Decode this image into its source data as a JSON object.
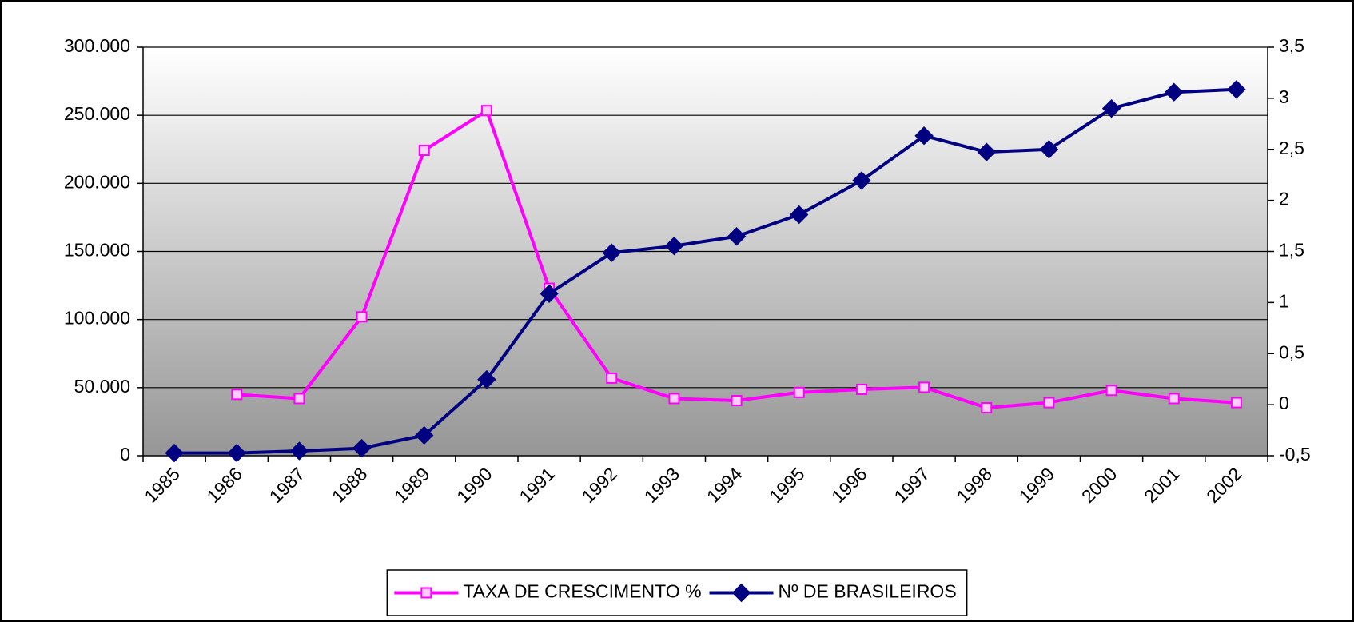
{
  "chart_data": {
    "type": "line",
    "categories": [
      "1985",
      "1986",
      "1987",
      "1988",
      "1989",
      "1990",
      "1991",
      "1992",
      "1993",
      "1994",
      "1995",
      "1996",
      "1997",
      "1998",
      "1999",
      "2000",
      "2001",
      "2002"
    ],
    "series": [
      {
        "name": "TAXA DE CRESCIMENTO %",
        "color": "#ff00ff",
        "axis": "y2",
        "marker": "square",
        "values": [
          null,
          0.1,
          0.06,
          0.86,
          2.49,
          2.88,
          1.14,
          0.26,
          0.06,
          0.04,
          0.12,
          0.15,
          0.17,
          -0.03,
          0.02,
          0.14,
          0.06,
          0.02
        ]
      },
      {
        "name": "Nº DE BRASILEIROS",
        "color": "#000080",
        "axis": "y",
        "marker": "diamond",
        "values": [
          2000,
          2000,
          3500,
          5500,
          15000,
          56000,
          119000,
          149000,
          154000,
          161000,
          177000,
          202000,
          235000,
          223000,
          225000,
          255000,
          267000,
          269000
        ]
      }
    ],
    "ylim": [
      0,
      300000
    ],
    "yticks": [
      0,
      {
        "value": 50000,
        "label": "50.000"
      },
      {
        "value": 100000,
        "label": "100.000"
      },
      {
        "value": 150000,
        "label": "150.000"
      },
      {
        "value": 200000,
        "label": "200.000"
      },
      {
        "value": 250000,
        "label": "250.000"
      },
      {
        "value": 300000,
        "label": "300.000"
      }
    ],
    "y2lim": [
      -0.5,
      3.5
    ],
    "y2ticks": [
      {
        "value": -0.5,
        "label": "-0,5"
      },
      0,
      {
        "value": 0.5,
        "label": "0,5"
      },
      1,
      {
        "value": 1.5,
        "label": "1,5"
      },
      2,
      {
        "value": 2.5,
        "label": "2,5"
      },
      3,
      {
        "value": 3.5,
        "label": "3,5"
      }
    ],
    "grid": true,
    "legend": "bottom"
  }
}
